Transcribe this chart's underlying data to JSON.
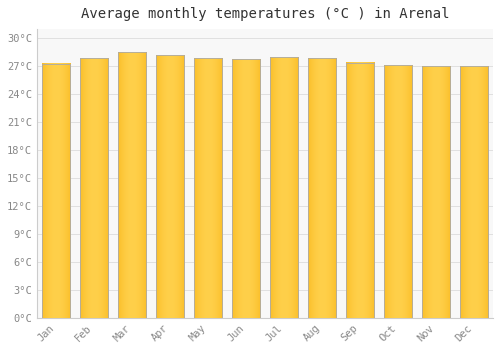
{
  "title": "Average monthly temperatures (°C ) in Arenal",
  "months": [
    "Jan",
    "Feb",
    "Mar",
    "Apr",
    "May",
    "Jun",
    "Jul",
    "Aug",
    "Sep",
    "Oct",
    "Nov",
    "Dec"
  ],
  "values": [
    27.3,
    27.9,
    28.5,
    28.2,
    27.9,
    27.8,
    28.0,
    27.9,
    27.4,
    27.1,
    27.0,
    27.0
  ],
  "bar_color_center": "#FFD04A",
  "bar_color_edge": "#F5A800",
  "bar_border_color": "#AAAAAA",
  "background_color": "#FFFFFF",
  "plot_bg_color": "#F8F8F8",
  "grid_color": "#E0E0E0",
  "ylim": [
    0,
    31
  ],
  "yticks": [
    0,
    3,
    6,
    9,
    12,
    15,
    18,
    21,
    24,
    27,
    30
  ],
  "ytick_labels": [
    "0°C",
    "3°C",
    "6°C",
    "9°C",
    "12°C",
    "15°C",
    "18°C",
    "21°C",
    "24°C",
    "27°C",
    "30°C"
  ],
  "title_fontsize": 10,
  "tick_fontsize": 7.5,
  "bar_width": 0.75
}
